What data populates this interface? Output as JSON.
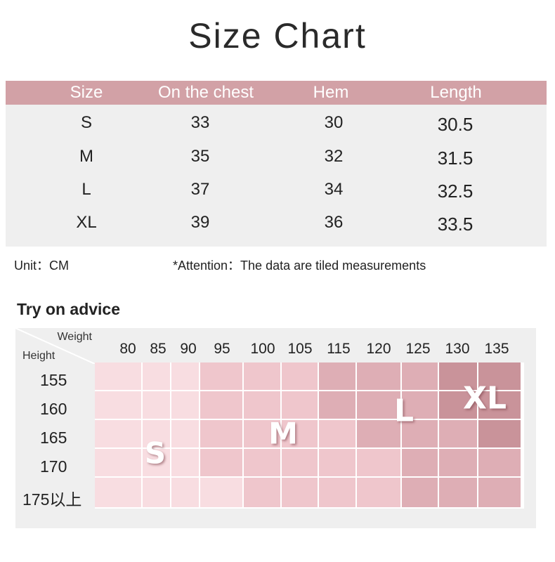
{
  "title": "Size Chart",
  "size_table": {
    "headers": [
      "Size",
      "On the chest",
      "Hem",
      "Length"
    ],
    "rows": [
      [
        "S",
        "33",
        "30",
        "30.5"
      ],
      [
        "M",
        "35",
        "32",
        "31.5"
      ],
      [
        "L",
        "37",
        "34",
        "32.5"
      ],
      [
        "XL",
        "39",
        "36",
        "33.5"
      ]
    ]
  },
  "unit_note": "Unit：CM",
  "attention_note": "*Attention：The data are tiled measurements",
  "advice": {
    "title": "Try on advice",
    "weight_label": "Weight",
    "height_label": "Height",
    "weights": [
      "80",
      "85",
      "90",
      "95",
      "100",
      "105",
      "115",
      "120",
      "125",
      "130",
      "135"
    ],
    "heights": [
      "155",
      "160",
      "165",
      "170",
      "175以上"
    ],
    "zones": [
      "S",
      "M",
      "L",
      "XL"
    ],
    "grid": [
      [
        "S",
        "S",
        "S",
        "M",
        "M",
        "M",
        "L",
        "L",
        "L",
        "XL",
        "XL"
      ],
      [
        "S",
        "S",
        "S",
        "M",
        "M",
        "M",
        "L",
        "L",
        "L",
        "XL",
        "XL"
      ],
      [
        "S",
        "S",
        "S",
        "M",
        "M",
        "M",
        "M",
        "L",
        "L",
        "L",
        "XL"
      ],
      [
        "S",
        "S",
        "S",
        "M",
        "M",
        "M",
        "M",
        "M",
        "L",
        "L",
        "L"
      ],
      [
        "S",
        "S",
        "S",
        "S",
        "M",
        "M",
        "M",
        "M",
        "L",
        "L",
        "L"
      ]
    ],
    "colors": {
      "S": "#f8dde1",
      "M": "#efc6cc",
      "L": "#deaeb5",
      "XL": "#c9939a"
    }
  }
}
